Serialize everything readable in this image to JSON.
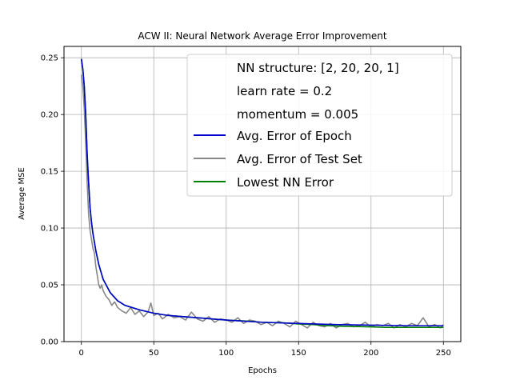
{
  "chart_data": {
    "type": "line",
    "title": "ACW II: Neural Network Average Error Improvement",
    "xlabel": "Epochs",
    "ylabel": "Average MSE",
    "xlim": [
      -12,
      262
    ],
    "ylim": [
      0,
      0.26
    ],
    "xticks": [
      0,
      50,
      100,
      150,
      200,
      250
    ],
    "yticks": [
      0.0,
      0.05,
      0.1,
      0.15,
      0.2,
      0.25
    ],
    "xtick_labels": [
      "0",
      "50",
      "100",
      "150",
      "200",
      "250"
    ],
    "ytick_labels": [
      "0.00",
      "0.05",
      "0.10",
      "0.15",
      "0.20",
      "0.25"
    ],
    "grid": true,
    "legend_position": "top-right",
    "legend_text": [
      "NN structure: [2, 20, 20, 1]",
      "learn rate = 0.2",
      "momentum = 0.005"
    ],
    "series": [
      {
        "name": "Avg. Error of Epoch",
        "color": "#0000cc",
        "x": [
          0,
          1,
          2,
          3,
          4,
          5,
          6,
          7,
          8,
          10,
          12,
          15,
          20,
          25,
          30,
          40,
          50,
          60,
          80,
          100,
          125,
          150,
          175,
          200,
          225,
          250
        ],
        "y": [
          0.249,
          0.24,
          0.225,
          0.2,
          0.165,
          0.14,
          0.118,
          0.105,
          0.095,
          0.08,
          0.068,
          0.055,
          0.043,
          0.036,
          0.032,
          0.028,
          0.025,
          0.023,
          0.021,
          0.019,
          0.017,
          0.016,
          0.015,
          0.0145,
          0.014,
          0.014
        ]
      },
      {
        "name": "Avg. Error of Test Set",
        "color": "#888888",
        "x": [
          0,
          1,
          2,
          3,
          4,
          5,
          6,
          7,
          8,
          9,
          10,
          11,
          12,
          13,
          14,
          15,
          17,
          19,
          21,
          23,
          25,
          28,
          31,
          34,
          37,
          40,
          43,
          46,
          48,
          50,
          53,
          56,
          60,
          64,
          68,
          72,
          76,
          80,
          84,
          88,
          92,
          96,
          100,
          104,
          108,
          112,
          116,
          120,
          124,
          128,
          132,
          136,
          140,
          144,
          148,
          152,
          156,
          160,
          164,
          168,
          172,
          176,
          180,
          184,
          188,
          192,
          196,
          200,
          204,
          208,
          212,
          216,
          220,
          224,
          228,
          232,
          236,
          240,
          244,
          248,
          250
        ],
        "y": [
          0.235,
          0.225,
          0.205,
          0.175,
          0.14,
          0.112,
          0.098,
          0.09,
          0.082,
          0.078,
          0.066,
          0.058,
          0.05,
          0.047,
          0.05,
          0.045,
          0.04,
          0.037,
          0.032,
          0.035,
          0.03,
          0.027,
          0.025,
          0.03,
          0.024,
          0.027,
          0.022,
          0.026,
          0.034,
          0.023,
          0.025,
          0.02,
          0.024,
          0.021,
          0.022,
          0.019,
          0.026,
          0.02,
          0.018,
          0.022,
          0.017,
          0.02,
          0.019,
          0.017,
          0.021,
          0.016,
          0.019,
          0.018,
          0.015,
          0.017,
          0.014,
          0.018,
          0.016,
          0.013,
          0.018,
          0.015,
          0.012,
          0.017,
          0.014,
          0.013,
          0.016,
          0.012,
          0.015,
          0.016,
          0.013,
          0.014,
          0.017,
          0.013,
          0.015,
          0.014,
          0.016,
          0.012,
          0.015,
          0.013,
          0.016,
          0.014,
          0.021,
          0.013,
          0.015,
          0.012,
          0.015
        ]
      },
      {
        "name": "Lowest NN Error",
        "color": "#008000",
        "x": [
          0,
          1,
          2,
          3,
          4,
          5,
          6,
          7,
          8,
          10,
          12,
          15,
          20,
          25,
          30,
          40,
          50,
          60,
          80,
          100,
          115,
          125,
          140,
          150,
          160,
          170,
          180,
          200,
          210,
          220,
          230,
          240,
          250
        ],
        "y": [
          0.249,
          0.24,
          0.225,
          0.2,
          0.165,
          0.14,
          0.118,
          0.105,
          0.095,
          0.08,
          0.068,
          0.055,
          0.043,
          0.036,
          0.032,
          0.028,
          0.025,
          0.023,
          0.021,
          0.019,
          0.018,
          0.017,
          0.0165,
          0.0155,
          0.015,
          0.014,
          0.0135,
          0.013,
          0.0125,
          0.0125,
          0.0125,
          0.0125,
          0.0125
        ]
      }
    ]
  }
}
